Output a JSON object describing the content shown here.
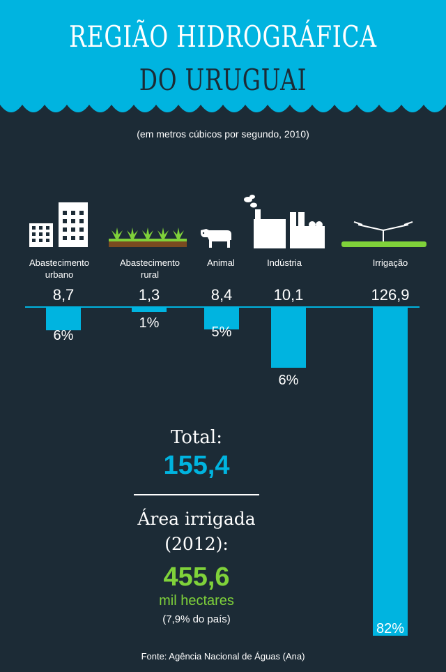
{
  "header": {
    "title_line1": "REGIÃO HIDROGRÁFICA",
    "title_line2": "DO URUGUAI",
    "subtitle": "(em metros cúbicos por segundo, 2010)",
    "banner_color": "#00b4e0",
    "background_color": "#1c2b36"
  },
  "chart_data": {
    "type": "bar",
    "categories": [
      "Abastecimento urbano",
      "Abastecimento rural",
      "Animal",
      "Indústria",
      "Irrigação"
    ],
    "icons": [
      "buildings-icon",
      "crops-icon",
      "cow-icon",
      "factory-icon",
      "irrigation-sprinkler-icon"
    ],
    "values": [
      8.7,
      1.3,
      8.4,
      10.1,
      126.9
    ],
    "value_labels": [
      "8,7",
      "1,3",
      "8,4",
      "10,1",
      "126,9"
    ],
    "shares": [
      "6%",
      "1%",
      "5%",
      "6%",
      "82%"
    ],
    "bar_color": "#00b4e0"
  },
  "summary": {
    "total_label": "Total:",
    "total_value": "155,4",
    "area_label": "Área irrigada (2012):",
    "area_value": "455,6",
    "area_unit": "mil hectares",
    "area_share": "(7,9% do país)",
    "area_color": "#7fd23a"
  },
  "source": "Fonte: Agência Nacional de Águas (Ana)"
}
